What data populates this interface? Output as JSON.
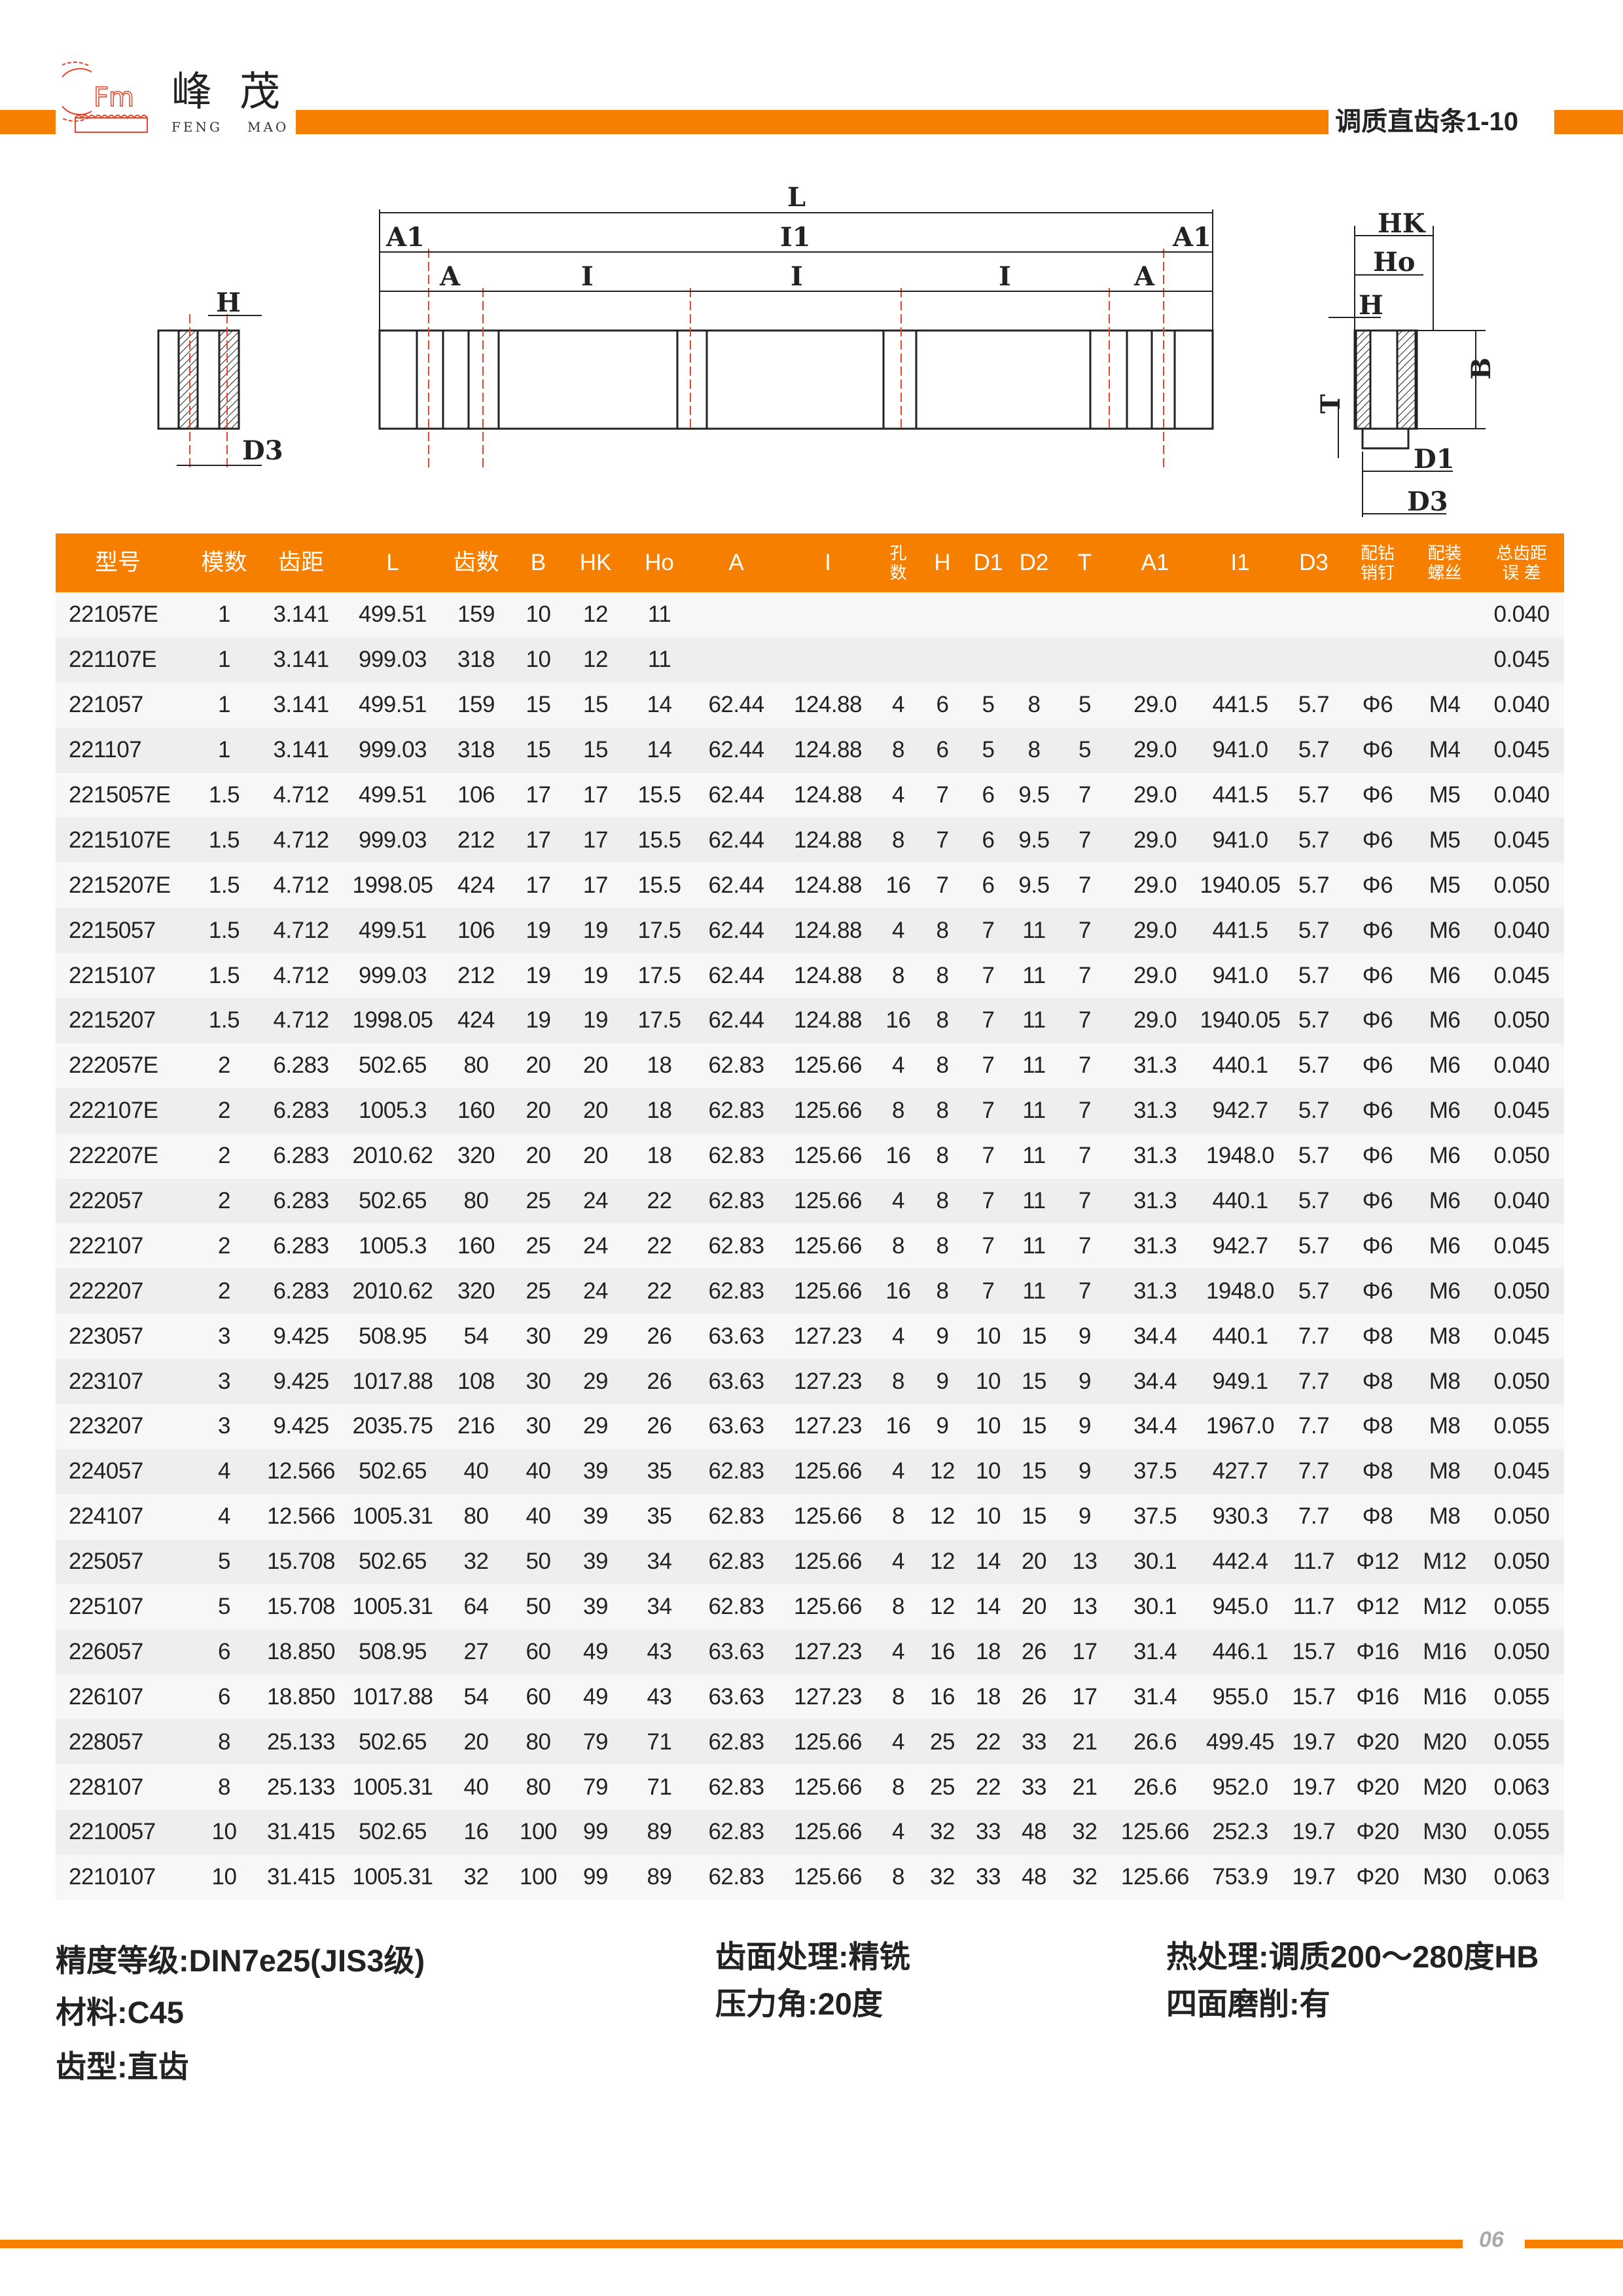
{
  "brand": {
    "cn": [
      "峰",
      "茂"
    ],
    "en": [
      "FENG",
      "MAO"
    ],
    "logo_text": "Fm",
    "accent_color": "#f77f00"
  },
  "header": {
    "title": "调质直齿条1-10"
  },
  "diagrams": {
    "left": {
      "H": "H",
      "D3": "D3"
    },
    "middle": {
      "L": "L",
      "A1_left": "A1",
      "I1": "I1",
      "A1_right": "A1",
      "A_left": "A",
      "I_1": "I",
      "I_2": "I",
      "I_3": "I",
      "A_right": "A"
    },
    "right": {
      "HK": "HK",
      "Ho": "Ho",
      "H": "H",
      "B": "B",
      "T": "T",
      "D1": "D1",
      "D3": "D3"
    }
  },
  "table": {
    "headers": [
      "型号",
      "模数",
      "齿距",
      "L",
      "齿数",
      "B",
      "HK",
      "Ho",
      "A",
      "I",
      "孔\n数",
      "H",
      "D1",
      "D2",
      "T",
      "A1",
      "I1",
      "D3",
      "配钻\n销钉",
      "配装\n螺丝",
      "总齿距\n误 差"
    ],
    "rows": [
      [
        "221057E",
        "1",
        "3.141",
        "499.51",
        "159",
        "10",
        "12",
        "11",
        "",
        "",
        "",
        "",
        "",
        "",
        "",
        "",
        "",
        "",
        "",
        "",
        "0.040"
      ],
      [
        "221107E",
        "1",
        "3.141",
        "999.03",
        "318",
        "10",
        "12",
        "11",
        "",
        "",
        "",
        "",
        "",
        "",
        "",
        "",
        "",
        "",
        "",
        "",
        "0.045"
      ],
      [
        "221057",
        "1",
        "3.141",
        "499.51",
        "159",
        "15",
        "15",
        "14",
        "62.44",
        "124.88",
        "4",
        "6",
        "5",
        "8",
        "5",
        "29.0",
        "441.5",
        "5.7",
        "Φ6",
        "M4",
        "0.040"
      ],
      [
        "221107",
        "1",
        "3.141",
        "999.03",
        "318",
        "15",
        "15",
        "14",
        "62.44",
        "124.88",
        "8",
        "6",
        "5",
        "8",
        "5",
        "29.0",
        "941.0",
        "5.7",
        "Φ6",
        "M4",
        "0.045"
      ],
      [
        "2215057E",
        "1.5",
        "4.712",
        "499.51",
        "106",
        "17",
        "17",
        "15.5",
        "62.44",
        "124.88",
        "4",
        "7",
        "6",
        "9.5",
        "7",
        "29.0",
        "441.5",
        "5.7",
        "Φ6",
        "M5",
        "0.040"
      ],
      [
        "2215107E",
        "1.5",
        "4.712",
        "999.03",
        "212",
        "17",
        "17",
        "15.5",
        "62.44",
        "124.88",
        "8",
        "7",
        "6",
        "9.5",
        "7",
        "29.0",
        "941.0",
        "5.7",
        "Φ6",
        "M5",
        "0.045"
      ],
      [
        "2215207E",
        "1.5",
        "4.712",
        "1998.05",
        "424",
        "17",
        "17",
        "15.5",
        "62.44",
        "124.88",
        "16",
        "7",
        "6",
        "9.5",
        "7",
        "29.0",
        "1940.05",
        "5.7",
        "Φ6",
        "M5",
        "0.050"
      ],
      [
        "2215057",
        "1.5",
        "4.712",
        "499.51",
        "106",
        "19",
        "19",
        "17.5",
        "62.44",
        "124.88",
        "4",
        "8",
        "7",
        "11",
        "7",
        "29.0",
        "441.5",
        "5.7",
        "Φ6",
        "M6",
        "0.040"
      ],
      [
        "2215107",
        "1.5",
        "4.712",
        "999.03",
        "212",
        "19",
        "19",
        "17.5",
        "62.44",
        "124.88",
        "8",
        "8",
        "7",
        "11",
        "7",
        "29.0",
        "941.0",
        "5.7",
        "Φ6",
        "M6",
        "0.045"
      ],
      [
        "2215207",
        "1.5",
        "4.712",
        "1998.05",
        "424",
        "19",
        "19",
        "17.5",
        "62.44",
        "124.88",
        "16",
        "8",
        "7",
        "11",
        "7",
        "29.0",
        "1940.05",
        "5.7",
        "Φ6",
        "M6",
        "0.050"
      ],
      [
        "222057E",
        "2",
        "6.283",
        "502.65",
        "80",
        "20",
        "20",
        "18",
        "62.83",
        "125.66",
        "4",
        "8",
        "7",
        "11",
        "7",
        "31.3",
        "440.1",
        "5.7",
        "Φ6",
        "M6",
        "0.040"
      ],
      [
        "222107E",
        "2",
        "6.283",
        "1005.3",
        "160",
        "20",
        "20",
        "18",
        "62.83",
        "125.66",
        "8",
        "8",
        "7",
        "11",
        "7",
        "31.3",
        "942.7",
        "5.7",
        "Φ6",
        "M6",
        "0.045"
      ],
      [
        "222207E",
        "2",
        "6.283",
        "2010.62",
        "320",
        "20",
        "20",
        "18",
        "62.83",
        "125.66",
        "16",
        "8",
        "7",
        "11",
        "7",
        "31.3",
        "1948.0",
        "5.7",
        "Φ6",
        "M6",
        "0.050"
      ],
      [
        "222057",
        "2",
        "6.283",
        "502.65",
        "80",
        "25",
        "24",
        "22",
        "62.83",
        "125.66",
        "4",
        "8",
        "7",
        "11",
        "7",
        "31.3",
        "440.1",
        "5.7",
        "Φ6",
        "M6",
        "0.040"
      ],
      [
        "222107",
        "2",
        "6.283",
        "1005.3",
        "160",
        "25",
        "24",
        "22",
        "62.83",
        "125.66",
        "8",
        "8",
        "7",
        "11",
        "7",
        "31.3",
        "942.7",
        "5.7",
        "Φ6",
        "M6",
        "0.045"
      ],
      [
        "222207",
        "2",
        "6.283",
        "2010.62",
        "320",
        "25",
        "24",
        "22",
        "62.83",
        "125.66",
        "16",
        "8",
        "7",
        "11",
        "7",
        "31.3",
        "1948.0",
        "5.7",
        "Φ6",
        "M6",
        "0.050"
      ],
      [
        "223057",
        "3",
        "9.425",
        "508.95",
        "54",
        "30",
        "29",
        "26",
        "63.63",
        "127.23",
        "4",
        "9",
        "10",
        "15",
        "9",
        "34.4",
        "440.1",
        "7.7",
        "Φ8",
        "M8",
        "0.045"
      ],
      [
        "223107",
        "3",
        "9.425",
        "1017.88",
        "108",
        "30",
        "29",
        "26",
        "63.63",
        "127.23",
        "8",
        "9",
        "10",
        "15",
        "9",
        "34.4",
        "949.1",
        "7.7",
        "Φ8",
        "M8",
        "0.050"
      ],
      [
        "223207",
        "3",
        "9.425",
        "2035.75",
        "216",
        "30",
        "29",
        "26",
        "63.63",
        "127.23",
        "16",
        "9",
        "10",
        "15",
        "9",
        "34.4",
        "1967.0",
        "7.7",
        "Φ8",
        "M8",
        "0.055"
      ],
      [
        "224057",
        "4",
        "12.566",
        "502.65",
        "40",
        "40",
        "39",
        "35",
        "62.83",
        "125.66",
        "4",
        "12",
        "10",
        "15",
        "9",
        "37.5",
        "427.7",
        "7.7",
        "Φ8",
        "M8",
        "0.045"
      ],
      [
        "224107",
        "4",
        "12.566",
        "1005.31",
        "80",
        "40",
        "39",
        "35",
        "62.83",
        "125.66",
        "8",
        "12",
        "10",
        "15",
        "9",
        "37.5",
        "930.3",
        "7.7",
        "Φ8",
        "M8",
        "0.050"
      ],
      [
        "225057",
        "5",
        "15.708",
        "502.65",
        "32",
        "50",
        "39",
        "34",
        "62.83",
        "125.66",
        "4",
        "12",
        "14",
        "20",
        "13",
        "30.1",
        "442.4",
        "11.7",
        "Φ12",
        "M12",
        "0.050"
      ],
      [
        "225107",
        "5",
        "15.708",
        "1005.31",
        "64",
        "50",
        "39",
        "34",
        "62.83",
        "125.66",
        "8",
        "12",
        "14",
        "20",
        "13",
        "30.1",
        "945.0",
        "11.7",
        "Φ12",
        "M12",
        "0.055"
      ],
      [
        "226057",
        "6",
        "18.850",
        "508.95",
        "27",
        "60",
        "49",
        "43",
        "63.63",
        "127.23",
        "4",
        "16",
        "18",
        "26",
        "17",
        "31.4",
        "446.1",
        "15.7",
        "Φ16",
        "M16",
        "0.050"
      ],
      [
        "226107",
        "6",
        "18.850",
        "1017.88",
        "54",
        "60",
        "49",
        "43",
        "63.63",
        "127.23",
        "8",
        "16",
        "18",
        "26",
        "17",
        "31.4",
        "955.0",
        "15.7",
        "Φ16",
        "M16",
        "0.055"
      ],
      [
        "228057",
        "8",
        "25.133",
        "502.65",
        "20",
        "80",
        "79",
        "71",
        "62.83",
        "125.66",
        "4",
        "25",
        "22",
        "33",
        "21",
        "26.6",
        "499.45",
        "19.7",
        "Φ20",
        "M20",
        "0.055"
      ],
      [
        "228107",
        "8",
        "25.133",
        "1005.31",
        "40",
        "80",
        "79",
        "71",
        "62.83",
        "125.66",
        "8",
        "25",
        "22",
        "33",
        "21",
        "26.6",
        "952.0",
        "19.7",
        "Φ20",
        "M20",
        "0.063"
      ],
      [
        "2210057",
        "10",
        "31.415",
        "502.65",
        "16",
        "100",
        "99",
        "89",
        "62.83",
        "125.66",
        "4",
        "32",
        "33",
        "48",
        "32",
        "125.66",
        "252.3",
        "19.7",
        "Φ20",
        "M30",
        "0.055"
      ],
      [
        "2210107",
        "10",
        "31.415",
        "1005.31",
        "32",
        "100",
        "99",
        "89",
        "62.83",
        "125.66",
        "8",
        "32",
        "33",
        "48",
        "32",
        "125.66",
        "753.9",
        "19.7",
        "Φ20",
        "M30",
        "0.063"
      ]
    ]
  },
  "specs": {
    "precision": "精度等级:DIN7e25(JIS3级)",
    "material": "材料:C45",
    "tooth_type": "齿型:直齿",
    "surface": "齿面处理:精铣",
    "pressure_angle": "压力角:20度",
    "heat_treatment": "热处理:调质200～280度HB",
    "grinding": "四面磨削:有"
  },
  "footer": {
    "page_number": "06"
  }
}
